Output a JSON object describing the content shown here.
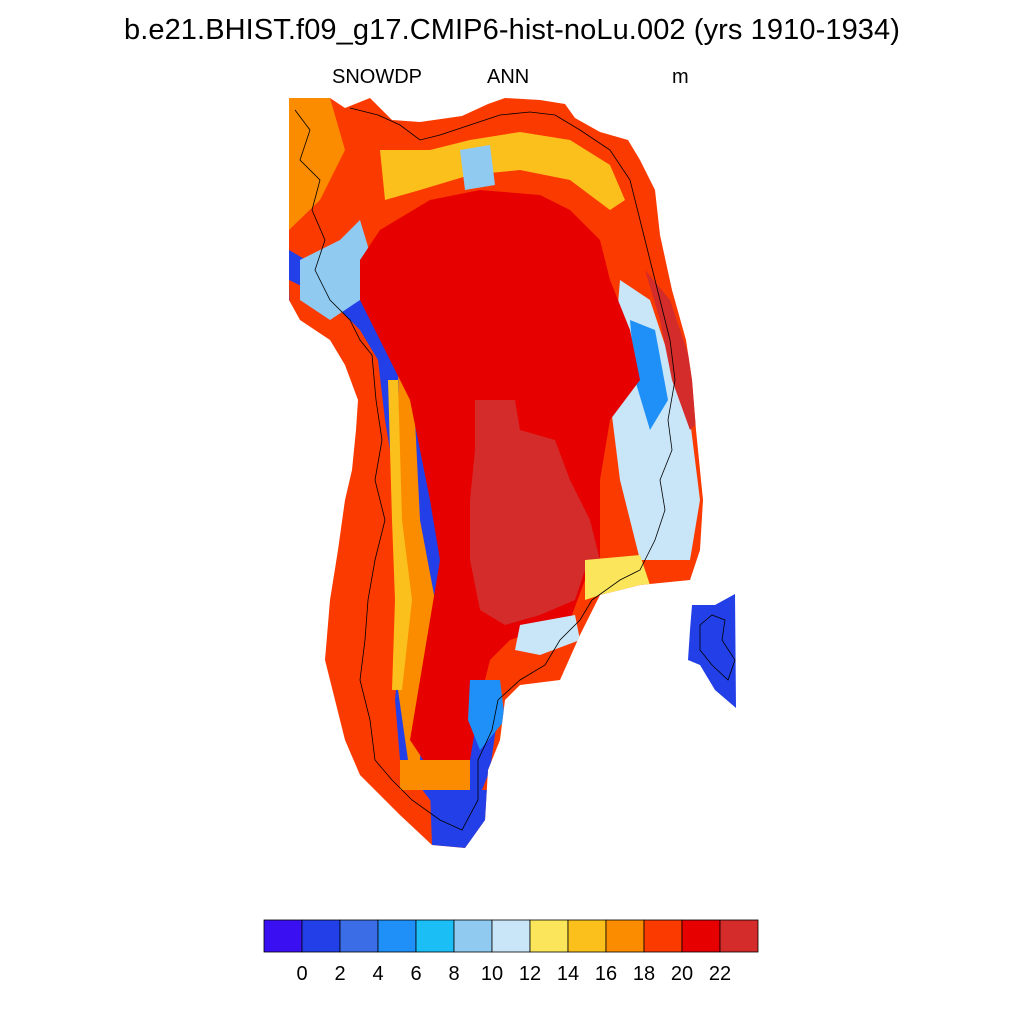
{
  "header": {
    "title": "b.e21.BHIST.f09_g17.CMIP6-hist-noLu.002 (yrs 1910-1934)",
    "variable": "SNOWDP",
    "season": "ANN",
    "units": "m"
  },
  "colorbar": {
    "colors": [
      "#3a10f2",
      "#2340e8",
      "#3b6ee6",
      "#1f90f8",
      "#1cbef6",
      "#90caf0",
      "#c8e6f8",
      "#fbe55b",
      "#fbc01c",
      "#fb8c00",
      "#fb3a00",
      "#e60000",
      "#d42b2b"
    ],
    "tick_labels": [
      "0",
      "2",
      "4",
      "6",
      "8",
      "10",
      "12",
      "14",
      "16",
      "18",
      "20",
      "22"
    ]
  },
  "map": {
    "regions": [
      {
        "name": "interior-high",
        "color": "#d42b2b"
      },
      {
        "name": "interior",
        "color": "#e60000"
      },
      {
        "name": "west-margin",
        "color": "#2340e8"
      },
      {
        "name": "coastal-band",
        "color": "#fb3a00"
      },
      {
        "name": "east-coast-cells",
        "color": "#d42b2b"
      },
      {
        "name": "separate-island",
        "color": "#2340e8"
      }
    ]
  }
}
